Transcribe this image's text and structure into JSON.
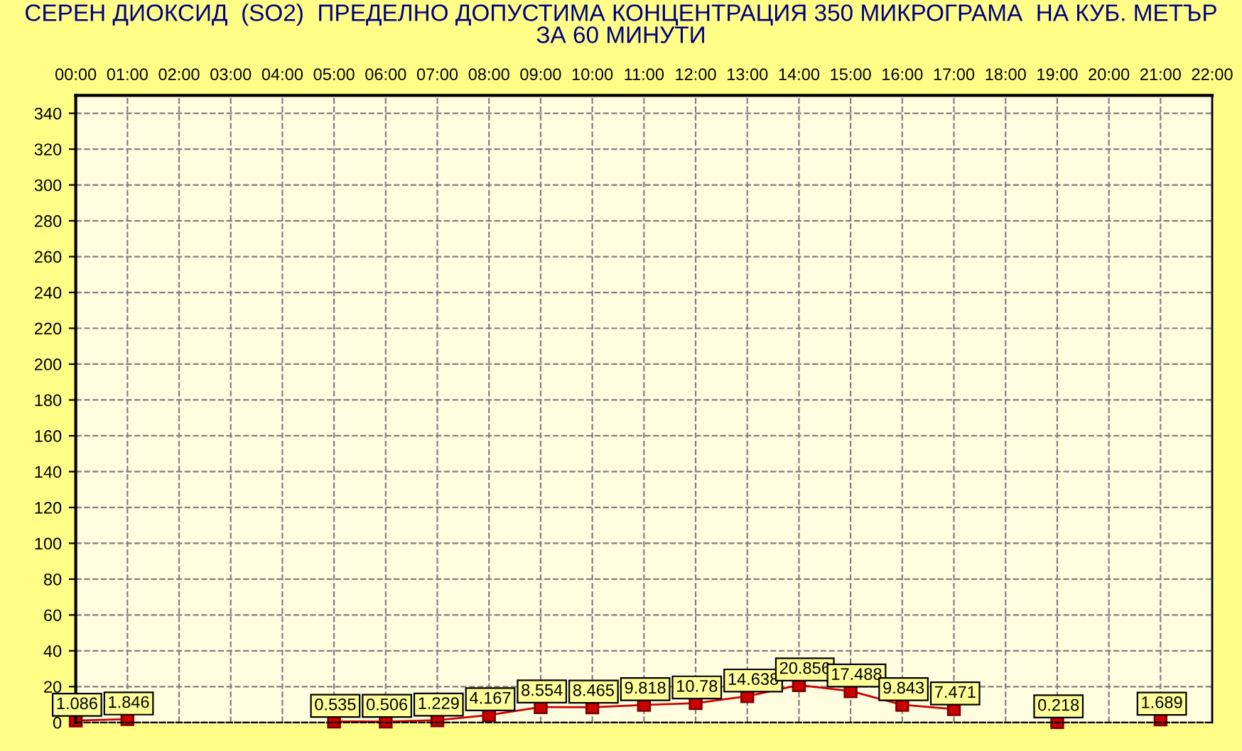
{
  "chart_data": {
    "type": "line",
    "title": "СЕРЕН ДИОКСИД  (SO2)  ПРЕДЕЛНО ДОПУСТИМА КОНЦЕНТРАЦИЯ 350 МИКРОГРАМА  НА КУБ. МЕТЪР\nЗА 60 МИНУТИ",
    "categories": [
      "00:00",
      "01:00",
      "02:00",
      "03:00",
      "04:00",
      "05:00",
      "06:00",
      "07:00",
      "08:00",
      "09:00",
      "10:00",
      "11:00",
      "12:00",
      "13:00",
      "14:00",
      "15:00",
      "16:00",
      "17:00",
      "18:00",
      "19:00",
      "20:00",
      "21:00",
      "22:00"
    ],
    "series": [
      {
        "color": "#cc0000",
        "values": [
          1.086,
          1.846,
          null,
          null,
          null,
          0.535,
          0.506,
          1.229,
          4.167,
          8.554,
          8.465,
          9.818,
          10.78,
          14.638,
          20.856,
          17.488,
          9.843,
          7.471,
          null,
          0.218,
          null,
          1.689,
          null
        ]
      }
    ],
    "ylim": [
      0,
      350
    ],
    "yticks": [
      0,
      20,
      40,
      60,
      80,
      100,
      120,
      140,
      160,
      180,
      200,
      220,
      240,
      260,
      280,
      300,
      320,
      340
    ],
    "grid": true,
    "marker": "square",
    "line_style": "solid",
    "data_labels": true,
    "legend": false
  }
}
